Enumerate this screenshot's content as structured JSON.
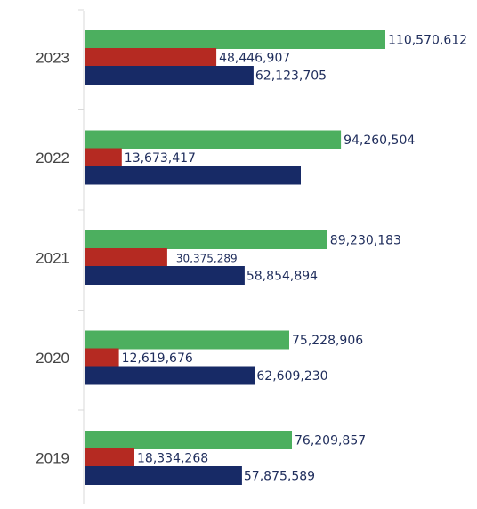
{
  "chart_data": {
    "type": "bar",
    "orientation": "horizontal",
    "categories": [
      "2023",
      "2022",
      "2021",
      "2020",
      "2019"
    ],
    "series": [
      {
        "color": "#4caf5f",
        "values": [
          110570612,
          94260504,
          89230183,
          75228906,
          76209857
        ]
      },
      {
        "color": "#b52a22",
        "values": [
          48446907,
          13673417,
          30375289,
          12619676,
          18334268
        ]
      },
      {
        "color": "#172a66",
        "values": [
          62123705,
          null,
          58854894,
          62609230,
          57875589
        ]
      }
    ],
    "data_labels": [
      [
        "110,570,612",
        "48,446,907",
        "62,123,705"
      ],
      [
        "94,260,504",
        "13,673,417",
        ""
      ],
      [
        "89,230,183",
        "30,375,289",
        "58,854,894"
      ],
      [
        "75,228,906",
        "12,619,676",
        "62,609,230"
      ],
      [
        "76,209,857",
        "18,334,268",
        "57,875,589"
      ]
    ],
    "xlim": [
      0,
      135000000
    ],
    "grid": false,
    "legend": "none"
  }
}
